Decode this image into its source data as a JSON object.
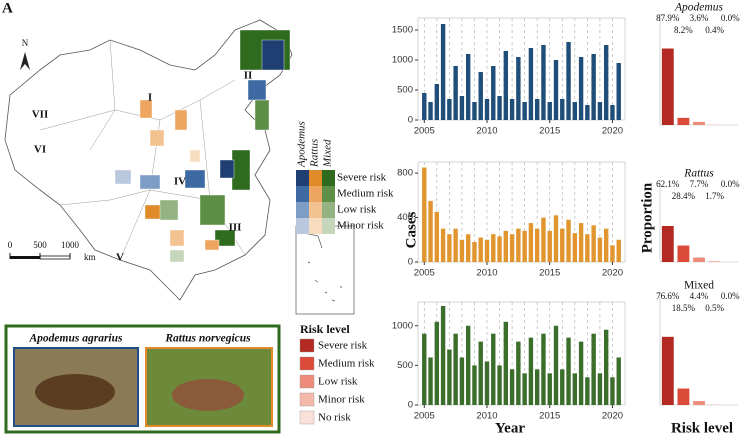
{
  "panel_label": "A",
  "map": {
    "north": "N",
    "regions": [
      "I",
      "II",
      "III",
      "IV",
      "V",
      "VI",
      "VII"
    ],
    "scale": {
      "ticks": [
        0,
        500,
        1000
      ],
      "unit": "km"
    },
    "legend": {
      "columns": [
        "Apodemus",
        "Rattus",
        "Mixed"
      ],
      "rows": [
        "Severe risk",
        "Medium risk",
        "Low risk",
        "Minor risk"
      ],
      "colors": [
        [
          "#1f3f73",
          "#3e6aa3",
          "#7d9dc6",
          "#b9c8de"
        ],
        [
          "#e08a2a",
          "#eda560",
          "#f3c291",
          "#f8dcc0"
        ],
        [
          "#2e6b1e",
          "#5e8f46",
          "#93b482",
          "#c5d6bb"
        ]
      ]
    }
  },
  "photos": [
    {
      "name": "Apodemus agrarius",
      "color": "#1f4e8a"
    },
    {
      "name": "Rattus norvegicus",
      "color": "#e08a2a"
    }
  ],
  "risk_legend": {
    "title": "Risk level",
    "items": [
      {
        "label": "Severe risk",
        "color": "#b42a22"
      },
      {
        "label": "Medium risk",
        "color": "#dc4a3a"
      },
      {
        "label": "Low risk",
        "color": "#ee8c7c"
      },
      {
        "label": "Minor risk",
        "color": "#f4b8ab"
      },
      {
        "label": "No risk",
        "color": "#fbe0d9"
      }
    ]
  },
  "axis_labels": {
    "cases": "Cases",
    "year": "Year",
    "proportion": "Proportion",
    "risk_level": "Risk level"
  },
  "chart_data": [
    {
      "type": "bar",
      "color": "#1f4e79",
      "xlim": [
        2004.5,
        2021
      ],
      "xticks": [
        2005,
        2010,
        2015,
        2020
      ],
      "xgrid": [
        2005,
        2006,
        2007,
        2008,
        2009,
        2010,
        2011,
        2012,
        2013,
        2014,
        2015,
        2016,
        2017,
        2018,
        2019,
        2020
      ],
      "ylim": [
        0,
        1700
      ],
      "yticks": [
        0,
        500,
        1000,
        1500
      ],
      "x": [
        2005,
        2005.5,
        2006,
        2006.5,
        2007,
        2007.5,
        2008,
        2008.5,
        2009,
        2009.5,
        2010,
        2010.5,
        2011,
        2011.5,
        2012,
        2012.5,
        2013,
        2013.5,
        2014,
        2014.5,
        2015,
        2015.5,
        2016,
        2016.5,
        2017,
        2017.5,
        2018,
        2018.5,
        2019,
        2019.5,
        2020,
        2020.5
      ],
      "values": [
        450,
        300,
        600,
        1600,
        350,
        900,
        400,
        1100,
        300,
        800,
        350,
        900,
        400,
        1150,
        350,
        1050,
        300,
        1200,
        350,
        1250,
        300,
        1000,
        350,
        1300,
        300,
        1050,
        250,
        1100,
        300,
        1250,
        250,
        950
      ]
    },
    {
      "type": "bar",
      "color": "#e0952f",
      "xlim": [
        2004.5,
        2021
      ],
      "xticks": [
        2005,
        2010,
        2015,
        2020
      ],
      "xgrid": [
        2005,
        2006,
        2007,
        2008,
        2009,
        2010,
        2011,
        2012,
        2013,
        2014,
        2015,
        2016,
        2017,
        2018,
        2019,
        2020
      ],
      "ylim": [
        0,
        900
      ],
      "yticks": [
        0,
        400,
        800
      ],
      "x": [
        2005,
        2005.5,
        2006,
        2006.5,
        2007,
        2007.5,
        2008,
        2008.5,
        2009,
        2009.5,
        2010,
        2010.5,
        2011,
        2011.5,
        2012,
        2012.5,
        2013,
        2013.5,
        2014,
        2014.5,
        2015,
        2015.5,
        2016,
        2016.5,
        2017,
        2017.5,
        2018,
        2018.5,
        2019,
        2019.5,
        2020,
        2020.5
      ],
      "values": [
        850,
        550,
        450,
        300,
        250,
        300,
        200,
        250,
        180,
        220,
        200,
        250,
        230,
        280,
        250,
        300,
        280,
        350,
        300,
        400,
        280,
        420,
        300,
        380,
        260,
        350,
        250,
        330,
        220,
        300,
        150,
        200
      ]
    },
    {
      "type": "bar",
      "color": "#3a6e2a",
      "xlim": [
        2004.5,
        2021
      ],
      "xticks": [
        2005,
        2010,
        2015,
        2020
      ],
      "xgrid": [
        2005,
        2006,
        2007,
        2008,
        2009,
        2010,
        2011,
        2012,
        2013,
        2014,
        2015,
        2016,
        2017,
        2018,
        2019,
        2020
      ],
      "ylim": [
        0,
        1300
      ],
      "yticks": [
        0,
        500,
        1000
      ],
      "x": [
        2005,
        2005.5,
        2006,
        2006.5,
        2007,
        2007.5,
        2008,
        2008.5,
        2009,
        2009.5,
        2010,
        2010.5,
        2011,
        2011.5,
        2012,
        2012.5,
        2013,
        2013.5,
        2014,
        2014.5,
        2015,
        2015.5,
        2016,
        2016.5,
        2017,
        2017.5,
        2018,
        2018.5,
        2019,
        2019.5,
        2020,
        2020.5
      ],
      "values": [
        900,
        600,
        1050,
        1250,
        700,
        900,
        600,
        1000,
        500,
        800,
        550,
        900,
        500,
        1050,
        450,
        800,
        400,
        850,
        450,
        900,
        400,
        1000,
        450,
        850,
        400,
        800,
        350,
        900,
        400,
        950,
        350,
        600
      ]
    },
    {
      "type": "bar",
      "title": "Apodemus",
      "ylim": [
        0,
        100
      ],
      "colors": [
        "#b42a22",
        "#dc4a3a",
        "#ee8c7c",
        "#f4b8ab",
        "#fbe0d9"
      ],
      "values": [
        87.9,
        8.2,
        3.6,
        0.4,
        0.0
      ],
      "value_labels": [
        "87.9%",
        "8.2%",
        "3.6%",
        "0.4%",
        "0.0%"
      ]
    },
    {
      "type": "bar",
      "title": "Rattus",
      "ylim": [
        0,
        100
      ],
      "colors": [
        "#b42a22",
        "#dc4a3a",
        "#ee8c7c",
        "#f4b8ab",
        "#fbe0d9"
      ],
      "values": [
        62.1,
        28.4,
        7.7,
        1.7,
        0.0
      ],
      "value_labels": [
        "62.1%",
        "28.4%",
        "7.7%",
        "1.7%",
        "0.0%"
      ]
    },
    {
      "type": "bar",
      "title": "Mixed",
      "ylim": [
        0,
        100
      ],
      "colors": [
        "#b42a22",
        "#dc4a3a",
        "#ee8c7c",
        "#f4b8ab",
        "#fbe0d9"
      ],
      "values": [
        76.6,
        18.5,
        4.4,
        0.5,
        0.0
      ],
      "value_labels": [
        "76.6%",
        "18.5%",
        "4.4%",
        "0.5%",
        "0.0%"
      ]
    }
  ]
}
